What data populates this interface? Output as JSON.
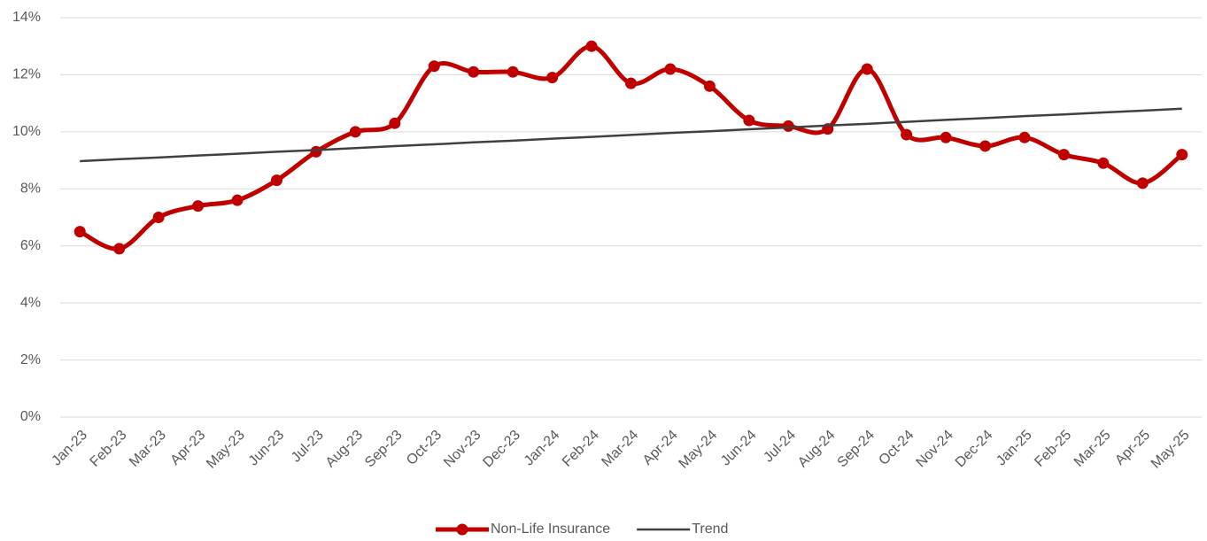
{
  "chart_data": {
    "type": "line",
    "categories": [
      "Jan-23",
      "Feb-23",
      "Mar-23",
      "Apr-23",
      "May-23",
      "Jun-23",
      "Jul-23",
      "Aug-23",
      "Sep-23",
      "Oct-23",
      "Nov-23",
      "Dec-23",
      "Jan-24",
      "Feb-24",
      "Mar-24",
      "Apr-24",
      "May-24",
      "Jun-24",
      "Jul-24",
      "Aug-24",
      "Sep-24",
      "Oct-24",
      "Nov-24",
      "Dec-24",
      "Jan-25",
      "Feb-25",
      "Mar-25",
      "Apr-25",
      "May-25"
    ],
    "series": [
      {
        "name": "Non-Life Insurance",
        "color": "#c00000",
        "smooth": true,
        "markers": true,
        "values": [
          6.5,
          5.9,
          7.0,
          7.4,
          7.6,
          8.3,
          9.3,
          10.0,
          10.3,
          12.3,
          12.1,
          12.1,
          11.9,
          13.0,
          11.7,
          12.2,
          11.6,
          10.4,
          10.2,
          10.1,
          12.2,
          9.9,
          9.8,
          9.5,
          9.8,
          9.2,
          8.9,
          8.2,
          9.2
        ]
      },
      {
        "name": "Trend",
        "color": "#404040",
        "smooth": false,
        "markers": false,
        "values": [
          8.97,
          9.04,
          9.1,
          9.17,
          9.23,
          9.3,
          9.36,
          9.43,
          9.5,
          9.56,
          9.63,
          9.69,
          9.76,
          9.82,
          9.89,
          9.96,
          10.02,
          10.09,
          10.15,
          10.22,
          10.28,
          10.35,
          10.42,
          10.48,
          10.55,
          10.61,
          10.68,
          10.74,
          10.81
        ]
      }
    ],
    "ylim": [
      0,
      14
    ],
    "yticks": [
      {
        "value": 0,
        "label": "0%"
      },
      {
        "value": 2,
        "label": "2%"
      },
      {
        "value": 4,
        "label": "4%"
      },
      {
        "value": 6,
        "label": "6%"
      },
      {
        "value": 8,
        "label": "8%"
      },
      {
        "value": 10,
        "label": "10%"
      },
      {
        "value": 12,
        "label": "12%"
      },
      {
        "value": 14,
        "label": "14%"
      }
    ],
    "grid": true,
    "legend": "bottom"
  }
}
